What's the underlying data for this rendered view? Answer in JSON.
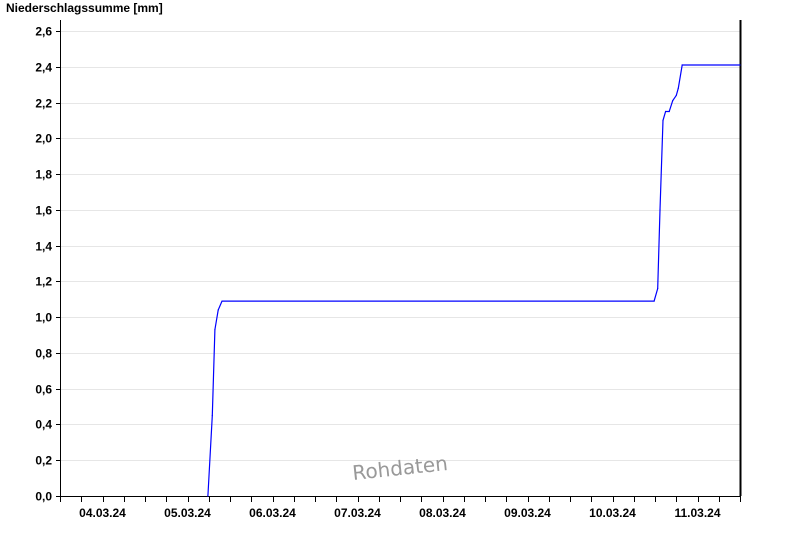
{
  "chart_data": {
    "type": "line",
    "title": "",
    "ylabel": "Niederschlagssumme [mm]",
    "xlabel": "",
    "xlim": [
      "04.03.24 00:00",
      "12.03.24 00:00"
    ],
    "ylim": [
      0,
      2.7
    ],
    "yticks": [
      "0,0",
      "0,2",
      "0,4",
      "0,6",
      "0,8",
      "1,0",
      "1,2",
      "1,4",
      "1,6",
      "1,8",
      "2,0",
      "2,2",
      "2,4",
      "2,6"
    ],
    "xticks": [
      "04.03.24",
      "05.03.24",
      "06.03.24",
      "07.03.24",
      "08.03.24",
      "09.03.24",
      "10.03.24",
      "11.03.24"
    ],
    "grid": "horizontal",
    "series_color": "#0000ff",
    "watermark": "Rohdaten",
    "x": [
      "05.03.24 17:45",
      "05.03.24 19:00",
      "05.03.24 19:45",
      "05.03.24 20:40",
      "05.03.24 21:45",
      "10.03.24 23:45",
      "11.03.24 00:45",
      "11.03.24 01:25",
      "11.03.24 02:15",
      "11.03.24 03:00",
      "11.03.24 04:00",
      "11.03.24 05:00",
      "11.03.24 06:00",
      "11.03.24 06:35",
      "11.03.24 07:40",
      "12.03.24 00:00"
    ],
    "y": [
      0.0,
      0.45,
      0.93,
      1.04,
      1.09,
      1.09,
      1.16,
      1.6,
      2.1,
      2.15,
      2.15,
      2.21,
      2.24,
      2.28,
      2.41,
      2.41
    ]
  }
}
